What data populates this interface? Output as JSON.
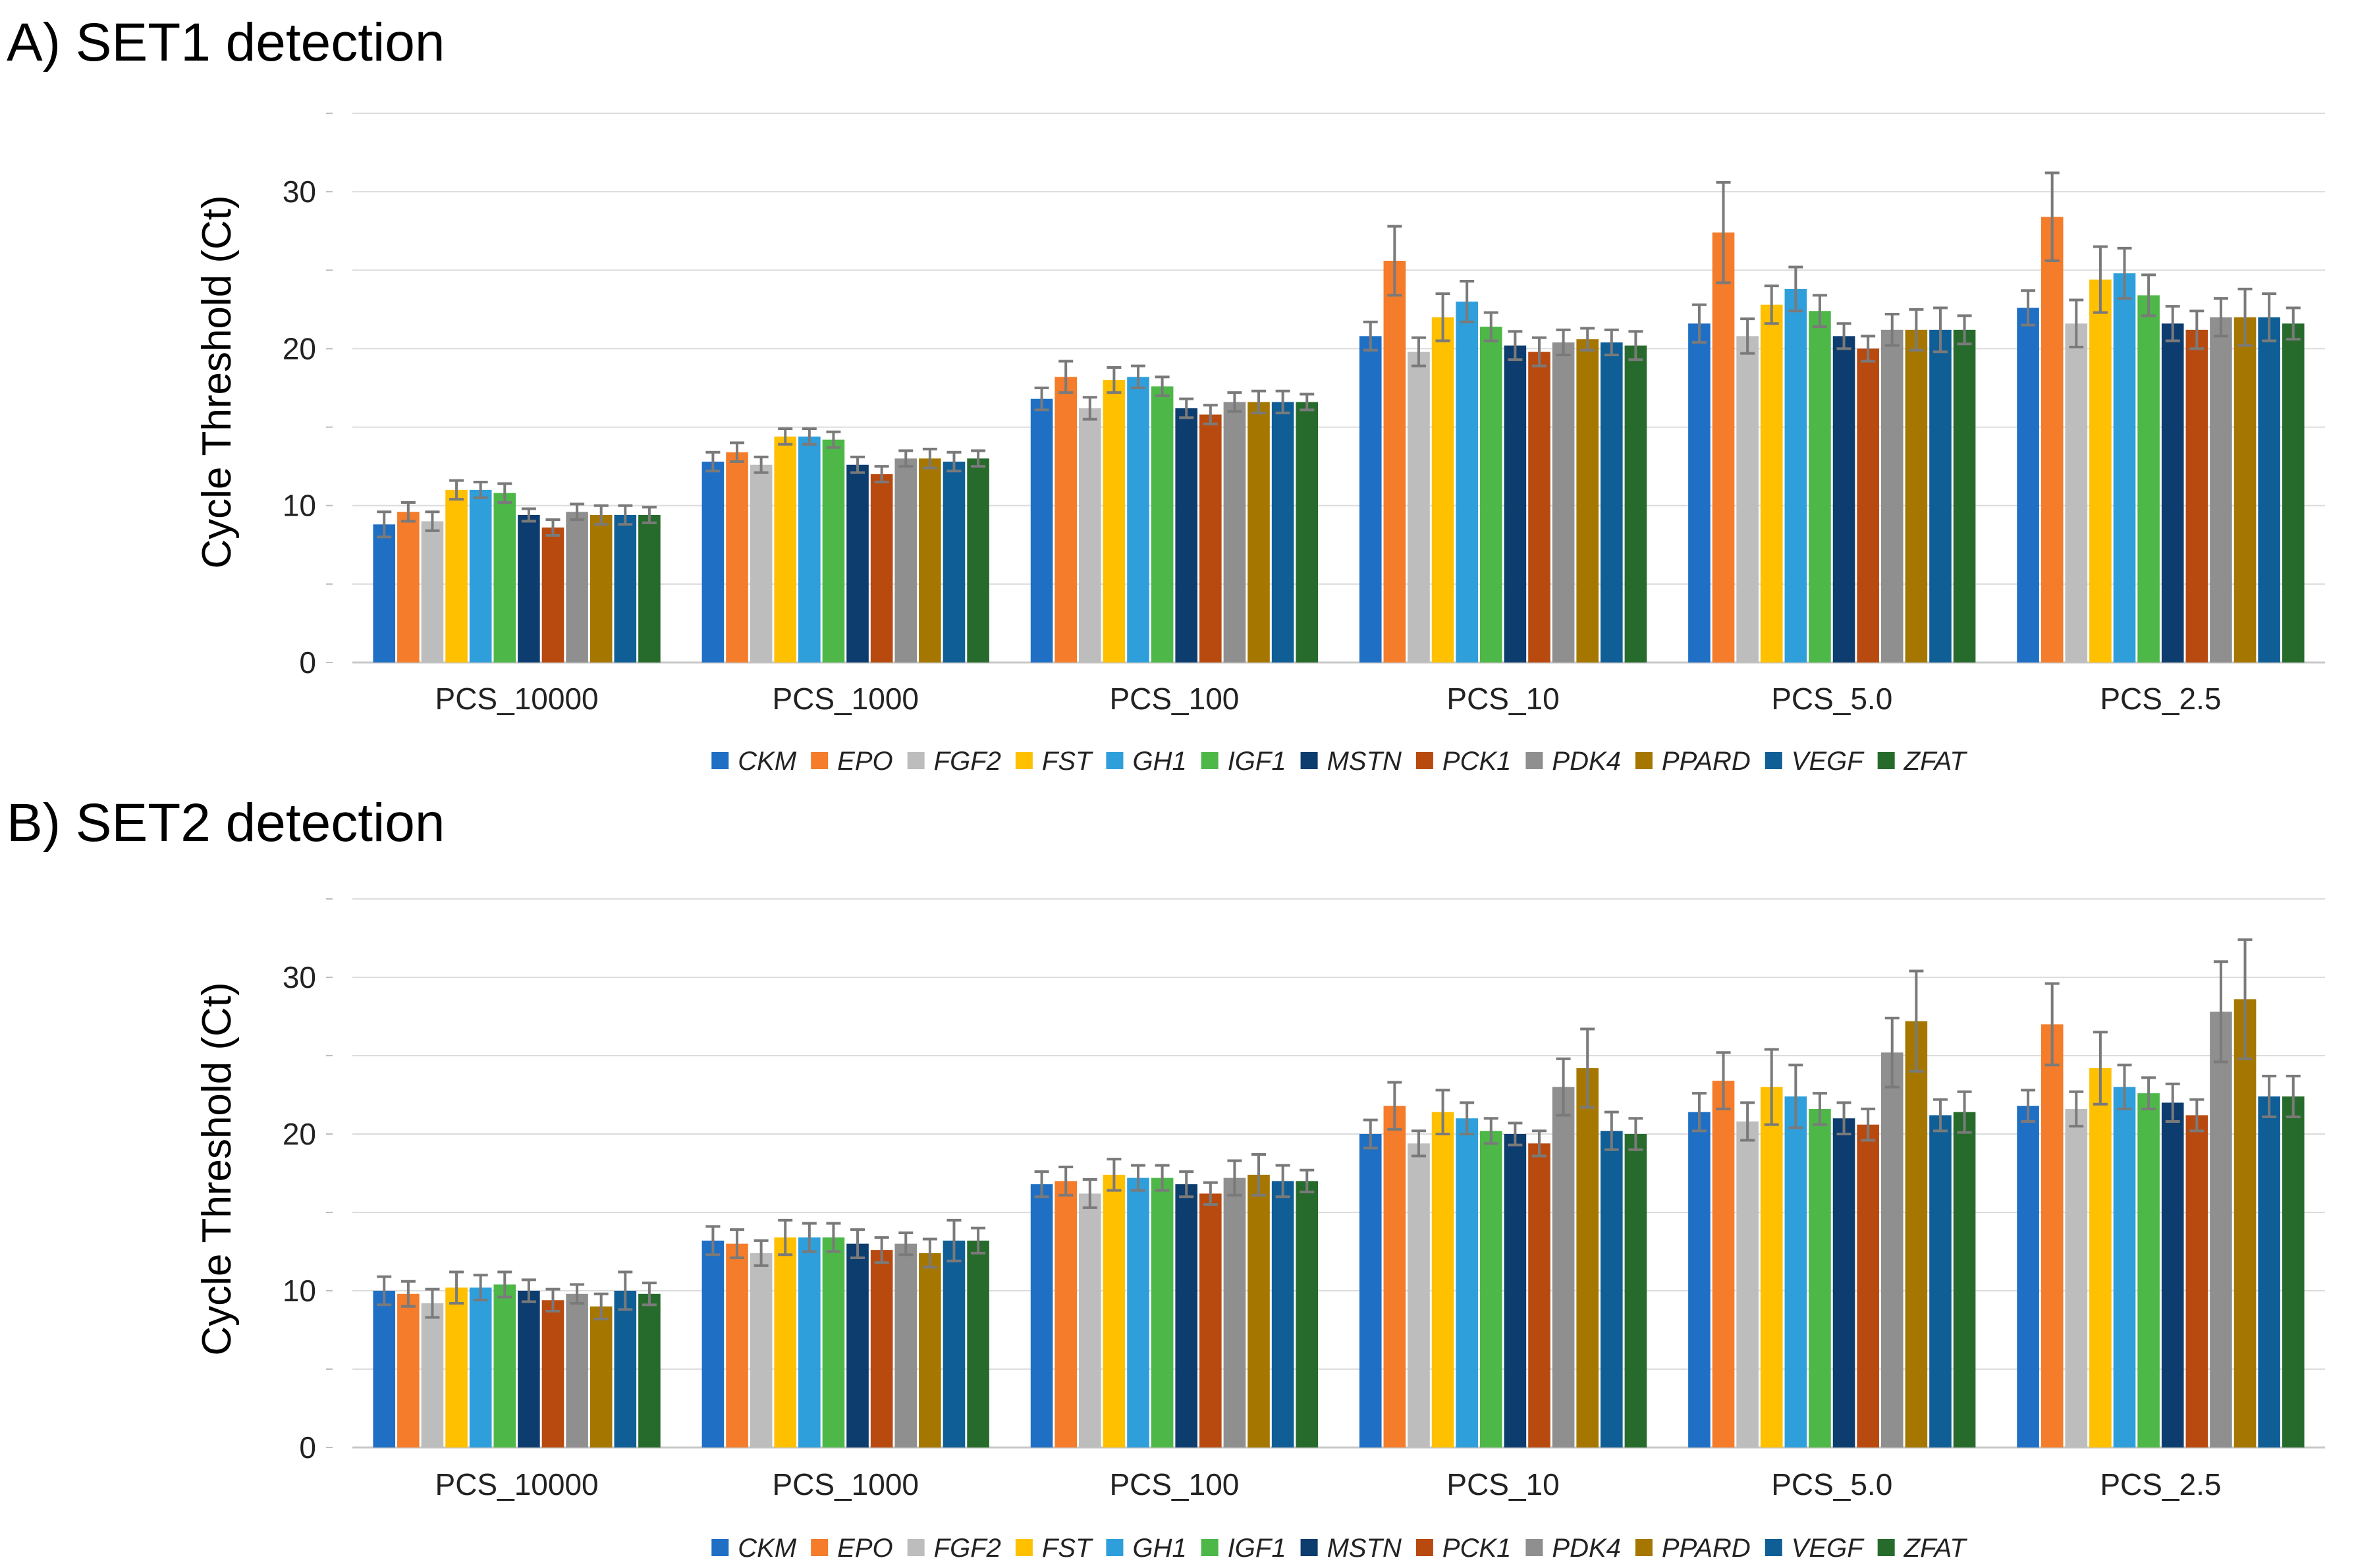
{
  "chart_data": [
    {
      "type": "bar",
      "title": "A) SET1 detection",
      "xlabel": "",
      "ylabel": "Cycle Threshold (Ct)",
      "ylim": [
        0,
        35
      ],
      "yticks": [
        0,
        10,
        20,
        30
      ],
      "grid": true,
      "legend": "bottom",
      "categories": [
        "PCS_10000",
        "PCS_1000",
        "PCS_100",
        "PCS_10",
        "PCS_5.0",
        "PCS_2.5"
      ],
      "series": [
        {
          "name": "CKM",
          "color": "#1f6fc4",
          "values": [
            8.8,
            12.8,
            16.8,
            20.8,
            21.6,
            22.6
          ],
          "errors": [
            0.8,
            0.6,
            0.7,
            0.9,
            1.2,
            1.1
          ]
        },
        {
          "name": "EPO",
          "color": "#f47c2a",
          "values": [
            9.6,
            13.4,
            18.2,
            25.6,
            27.4,
            28.4
          ],
          "errors": [
            0.6,
            0.6,
            1.0,
            2.2,
            3.2,
            2.8
          ]
        },
        {
          "name": "FGF2",
          "color": "#bdbdbd",
          "values": [
            9.0,
            12.6,
            16.2,
            19.8,
            20.8,
            21.6
          ],
          "errors": [
            0.6,
            0.5,
            0.7,
            0.9,
            1.1,
            1.5
          ]
        },
        {
          "name": "FST",
          "color": "#ffc000",
          "values": [
            11.0,
            14.4,
            18.0,
            22.0,
            22.8,
            24.4
          ],
          "errors": [
            0.6,
            0.5,
            0.8,
            1.5,
            1.2,
            2.1
          ]
        },
        {
          "name": "GH1",
          "color": "#2e9fdb",
          "values": [
            11.0,
            14.4,
            18.2,
            23.0,
            23.8,
            24.8
          ],
          "errors": [
            0.5,
            0.5,
            0.7,
            1.3,
            1.4,
            1.6
          ]
        },
        {
          "name": "IGF1",
          "color": "#4db848",
          "values": [
            10.8,
            14.2,
            17.6,
            21.4,
            22.4,
            23.4
          ],
          "errors": [
            0.6,
            0.5,
            0.6,
            0.9,
            1.0,
            1.3
          ]
        },
        {
          "name": "MSTN",
          "color": "#0d3c6e",
          "values": [
            9.4,
            12.6,
            16.2,
            20.2,
            20.8,
            21.6
          ],
          "errors": [
            0.4,
            0.5,
            0.6,
            0.9,
            0.8,
            1.1
          ]
        },
        {
          "name": "PCK1",
          "color": "#b84a10",
          "values": [
            8.6,
            12.0,
            15.8,
            19.8,
            20.0,
            21.2
          ],
          "errors": [
            0.5,
            0.5,
            0.6,
            0.9,
            0.8,
            1.2
          ]
        },
        {
          "name": "PDK4",
          "color": "#8f8f8f",
          "values": [
            9.6,
            13.0,
            16.6,
            20.4,
            21.2,
            22.0
          ],
          "errors": [
            0.5,
            0.5,
            0.6,
            0.8,
            1.0,
            1.2
          ]
        },
        {
          "name": "PPARD",
          "color": "#a67700",
          "values": [
            9.4,
            13.0,
            16.6,
            20.6,
            21.2,
            22.0
          ],
          "errors": [
            0.6,
            0.6,
            0.7,
            0.7,
            1.3,
            1.8
          ]
        },
        {
          "name": "VEGF",
          "color": "#0f5e96",
          "values": [
            9.4,
            12.8,
            16.6,
            20.4,
            21.2,
            22.0
          ],
          "errors": [
            0.6,
            0.6,
            0.7,
            0.8,
            1.4,
            1.5
          ]
        },
        {
          "name": "ZFAT",
          "color": "#276b2c",
          "values": [
            9.4,
            13.0,
            16.6,
            20.2,
            21.2,
            21.6
          ],
          "errors": [
            0.5,
            0.5,
            0.5,
            0.9,
            0.9,
            1.0
          ]
        }
      ]
    },
    {
      "type": "bar",
      "title": "B) SET2 detection",
      "xlabel": "",
      "ylabel": "Cycle Threshold (Ct)",
      "ylim": [
        0,
        35
      ],
      "yticks": [
        0,
        10,
        20,
        30
      ],
      "grid": true,
      "legend": "bottom",
      "categories": [
        "PCS_10000",
        "PCS_1000",
        "PCS_100",
        "PCS_10",
        "PCS_5.0",
        "PCS_2.5"
      ],
      "series": [
        {
          "name": "CKM",
          "color": "#1f6fc4",
          "values": [
            10.0,
            13.2,
            16.8,
            20.0,
            21.4,
            21.8
          ],
          "errors": [
            0.9,
            0.9,
            0.8,
            0.9,
            1.2,
            1.0
          ]
        },
        {
          "name": "EPO",
          "color": "#f47c2a",
          "values": [
            9.8,
            13.0,
            17.0,
            21.8,
            23.4,
            27.0
          ],
          "errors": [
            0.8,
            0.9,
            0.9,
            1.5,
            1.8,
            2.6
          ]
        },
        {
          "name": "FGF2",
          "color": "#bdbdbd",
          "values": [
            9.2,
            12.4,
            16.2,
            19.4,
            20.8,
            21.6
          ],
          "errors": [
            0.9,
            0.8,
            0.9,
            0.8,
            1.2,
            1.1
          ]
        },
        {
          "name": "FST",
          "color": "#ffc000",
          "values": [
            10.2,
            13.4,
            17.4,
            21.4,
            23.0,
            24.2
          ],
          "errors": [
            1.0,
            1.1,
            1.0,
            1.4,
            2.4,
            2.3
          ]
        },
        {
          "name": "GH1",
          "color": "#2e9fdb",
          "values": [
            10.2,
            13.4,
            17.2,
            21.0,
            22.4,
            23.0
          ],
          "errors": [
            0.8,
            0.9,
            0.8,
            1.0,
            2.0,
            1.4
          ]
        },
        {
          "name": "IGF1",
          "color": "#4db848",
          "values": [
            10.4,
            13.4,
            17.2,
            20.2,
            21.6,
            22.6
          ],
          "errors": [
            0.8,
            0.9,
            0.8,
            0.8,
            1.0,
            1.0
          ]
        },
        {
          "name": "MSTN",
          "color": "#0d3c6e",
          "values": [
            10.0,
            13.0,
            16.8,
            20.0,
            21.0,
            22.0
          ],
          "errors": [
            0.7,
            0.9,
            0.8,
            0.7,
            1.0,
            1.2
          ]
        },
        {
          "name": "PCK1",
          "color": "#b84a10",
          "values": [
            9.4,
            12.6,
            16.2,
            19.4,
            20.6,
            21.2
          ],
          "errors": [
            0.7,
            0.8,
            0.7,
            0.8,
            1.0,
            1.0
          ]
        },
        {
          "name": "PDK4",
          "color": "#8f8f8f",
          "values": [
            9.8,
            13.0,
            17.2,
            23.0,
            25.2,
            27.8
          ],
          "errors": [
            0.6,
            0.7,
            1.1,
            1.8,
            2.2,
            3.2
          ]
        },
        {
          "name": "PPARD",
          "color": "#a67700",
          "values": [
            9.0,
            12.4,
            17.4,
            24.2,
            27.2,
            28.6
          ],
          "errors": [
            0.8,
            0.9,
            1.3,
            2.5,
            3.2,
            3.8
          ]
        },
        {
          "name": "VEGF",
          "color": "#0f5e96",
          "values": [
            10.0,
            13.2,
            17.0,
            20.2,
            21.2,
            22.4
          ],
          "errors": [
            1.2,
            1.3,
            1.0,
            1.2,
            1.0,
            1.3
          ]
        },
        {
          "name": "ZFAT",
          "color": "#276b2c",
          "values": [
            9.8,
            13.2,
            17.0,
            20.0,
            21.4,
            22.4
          ],
          "errors": [
            0.7,
            0.8,
            0.7,
            1.0,
            1.3,
            1.3
          ]
        }
      ]
    }
  ]
}
